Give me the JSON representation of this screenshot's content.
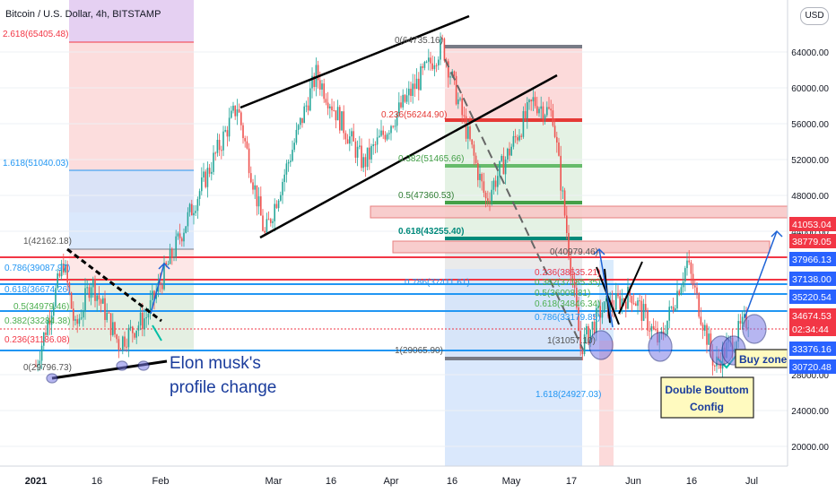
{
  "header": {
    "title": "Bitcoin / U.S. Dollar, 4h, BITSTAMP",
    "currency_button": "USD"
  },
  "chart_data": {
    "type": "candlestick",
    "symbol": "Bitcoin / U.S. Dollar",
    "interval": "4h",
    "exchange": "BITSTAMP",
    "x_tick_labels": [
      "2021",
      "16",
      "Feb",
      "Mar",
      "16",
      "Apr",
      "16",
      "May",
      "17",
      "Jun",
      "16",
      "Jul"
    ],
    "y_tick_labels": [
      "20000.00",
      "24000.00",
      "28000.00",
      "44000.00",
      "48000.00",
      "52000.00",
      "56000.00",
      "60000.00",
      "64000.00"
    ],
    "y_range": [
      18000,
      68000
    ],
    "price_series_approx": [
      {
        "x": "2021-01-01",
        "y": 29000
      },
      {
        "x": "2021-01-08",
        "y": 40500
      },
      {
        "x": "2021-01-11",
        "y": 33000
      },
      {
        "x": "2021-01-15",
        "y": 38500
      },
      {
        "x": "2021-01-22",
        "y": 31500
      },
      {
        "x": "2021-01-29",
        "y": 34500
      },
      {
        "x": "2021-02-08",
        "y": 45000
      },
      {
        "x": "2021-02-21",
        "y": 58000
      },
      {
        "x": "2021-02-28",
        "y": 43500
      },
      {
        "x": "2021-03-13",
        "y": 61500
      },
      {
        "x": "2021-03-25",
        "y": 51500
      },
      {
        "x": "2021-04-14",
        "y": 64800
      },
      {
        "x": "2021-04-25",
        "y": 47500
      },
      {
        "x": "2021-05-07",
        "y": 58500
      },
      {
        "x": "2021-05-12",
        "y": 57000
      },
      {
        "x": "2021-05-19",
        "y": 31000
      },
      {
        "x": "2021-05-24",
        "y": 35000
      },
      {
        "x": "2021-06-01",
        "y": 37000
      },
      {
        "x": "2021-06-08",
        "y": 31500
      },
      {
        "x": "2021-06-15",
        "y": 40500
      },
      {
        "x": "2021-06-22",
        "y": 29000
      },
      {
        "x": "2021-07-01",
        "y": 34600
      }
    ],
    "fibonacci_left": [
      "2.618(65405.48)",
      "1.618(51040.03)",
      "1(42162.18)",
      "0.786(39087.97)",
      "0.618(36674.26)",
      "0.5(34979.46)",
      "0.382(33284.38)",
      "0.236(31186.08)",
      "0(29796.73)"
    ],
    "fibonacci_mid": [
      "0(64735.16)",
      "0.236(56244.90)",
      "0.382(51465.66)",
      "0.5(47360.53)",
      "0.618(43255.40)",
      "0.786(37411.61)",
      "1(29065.90)"
    ],
    "fibonacci_right": [
      "0(40979.46)",
      "0.236(38635.21)",
      "0.382(37185.35)",
      "0.5(36008.81)",
      "0.618(34846.34)",
      "0.786(33179.85)",
      "1(31057.10)",
      "1.618(24927.03)"
    ],
    "price_labels": [
      {
        "text": "41053.04",
        "color": "#f23645"
      },
      {
        "text": "38779.05",
        "color": "#f23645"
      },
      {
        "text": "37966.13",
        "color": "#2962ff"
      },
      {
        "text": "37138.00",
        "color": "#2962ff"
      },
      {
        "text": "35220.54",
        "color": "#2962ff"
      },
      {
        "text": "34674.53",
        "color": "#f23645"
      },
      {
        "text": "02:34:44",
        "color": "#f23645"
      },
      {
        "text": "33376.16",
        "color": "#2962ff"
      },
      {
        "text": "30720.48",
        "color": "#2962ff"
      }
    ],
    "annotations": [
      "Elon musk's",
      "profile change",
      "Double Bouttom",
      "Config",
      "Buy zone"
    ],
    "colors": {
      "bull": "#26a69a",
      "bear": "#ef5350",
      "level_red": "#f23645",
      "level_blue": "#2196f3"
    }
  }
}
